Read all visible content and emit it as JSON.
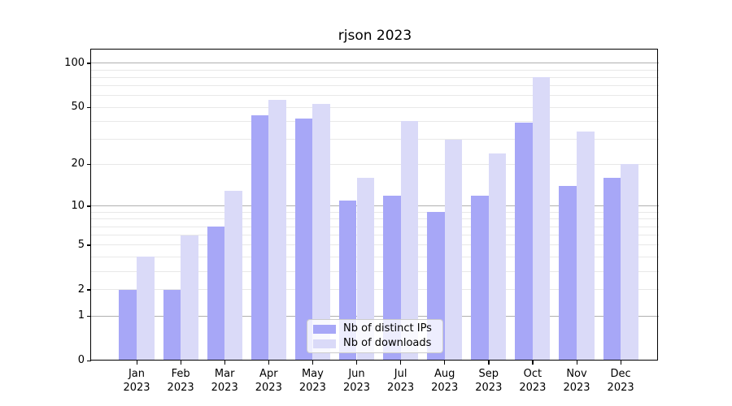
{
  "chart_data": {
    "type": "bar",
    "title": "rjson 2023",
    "categories": [
      "Jan 2023",
      "Feb 2023",
      "Mar 2023",
      "Apr 2023",
      "May 2023",
      "Jun 2023",
      "Jul 2023",
      "Aug 2023",
      "Sep 2023",
      "Oct 2023",
      "Nov 2023",
      "Dec 2023"
    ],
    "series": [
      {
        "name": "Nb of distinct IPs",
        "color": "#a7a7f7",
        "values": [
          2,
          2,
          7,
          44,
          42,
          11,
          12,
          9,
          12,
          39,
          14,
          16
        ]
      },
      {
        "name": "Nb of downloads",
        "color": "#dadaf8",
        "values": [
          4,
          6,
          13,
          56,
          53,
          16,
          40,
          30,
          24,
          80,
          34,
          20
        ]
      }
    ],
    "yscale": "log1p",
    "ylim": [
      0,
      124
    ],
    "y_tick_labels": [
      0,
      1,
      2,
      5,
      10,
      20,
      50,
      100
    ],
    "y_major_gridlines": [
      1,
      10,
      100
    ],
    "y_minor_gridlines": [
      2,
      3,
      4,
      5,
      6,
      7,
      8,
      9,
      20,
      30,
      40,
      50,
      60,
      70,
      80,
      90
    ],
    "grid": true,
    "legend_position": "lower center",
    "colors": {
      "major_grid": "#b0b0b0",
      "minor_grid": "#e8e8e8",
      "spine": "#000000",
      "text": "#000000",
      "legend_border": "#cccccc",
      "legend_background": "rgba(255,255,255,0.8)"
    }
  }
}
